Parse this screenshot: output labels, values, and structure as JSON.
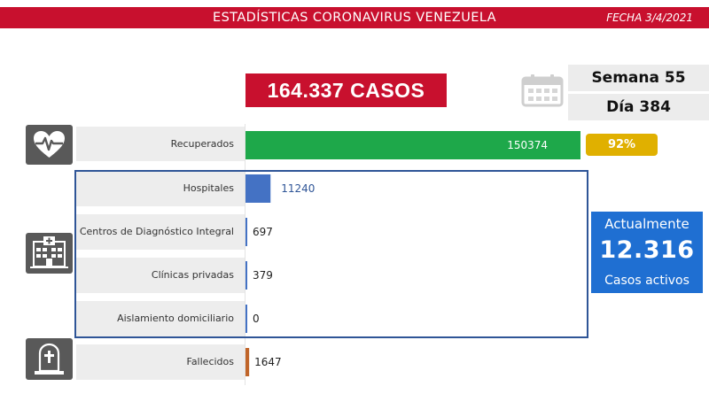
{
  "header": {
    "title": "ESTADÍSTICAS CORONAVIRUS VENEZUELA",
    "date": "FECHA 3/4/2021"
  },
  "summary": {
    "total_cases": "164.337 CASOS",
    "week": "Semana 55",
    "day": "Día 384"
  },
  "active": {
    "line1": "Actualmente",
    "value": "12.316",
    "line3": "Casos activos"
  },
  "recovered_percent": "92%",
  "colors": {
    "red": "#c8102e",
    "green": "#1ea84a",
    "blue": "#4472c4",
    "brown": "#c0652a",
    "gold": "#e0b000",
    "active_blue": "#1f6fd2"
  },
  "icons": [
    "heart-pulse-icon",
    "hospital-icon",
    "tombstone-icon",
    "calendar-icon"
  ],
  "chart_data": {
    "type": "bar",
    "orientation": "horizontal",
    "categories": [
      "Recuperados",
      "Hospitales",
      "Centros de Diagnóstico Integral",
      "Clínicas privadas",
      "Aislamiento domiciliario",
      "Fallecidos"
    ],
    "values": [
      150374,
      11240,
      697,
      379,
      0,
      1647
    ],
    "value_labels": [
      "150374",
      "11240",
      "697",
      "379",
      "0",
      "1647"
    ],
    "colors": [
      "#1ea84a",
      "#4472c4",
      "#4472c4",
      "#4472c4",
      "#4472c4",
      "#c0652a"
    ]
  }
}
